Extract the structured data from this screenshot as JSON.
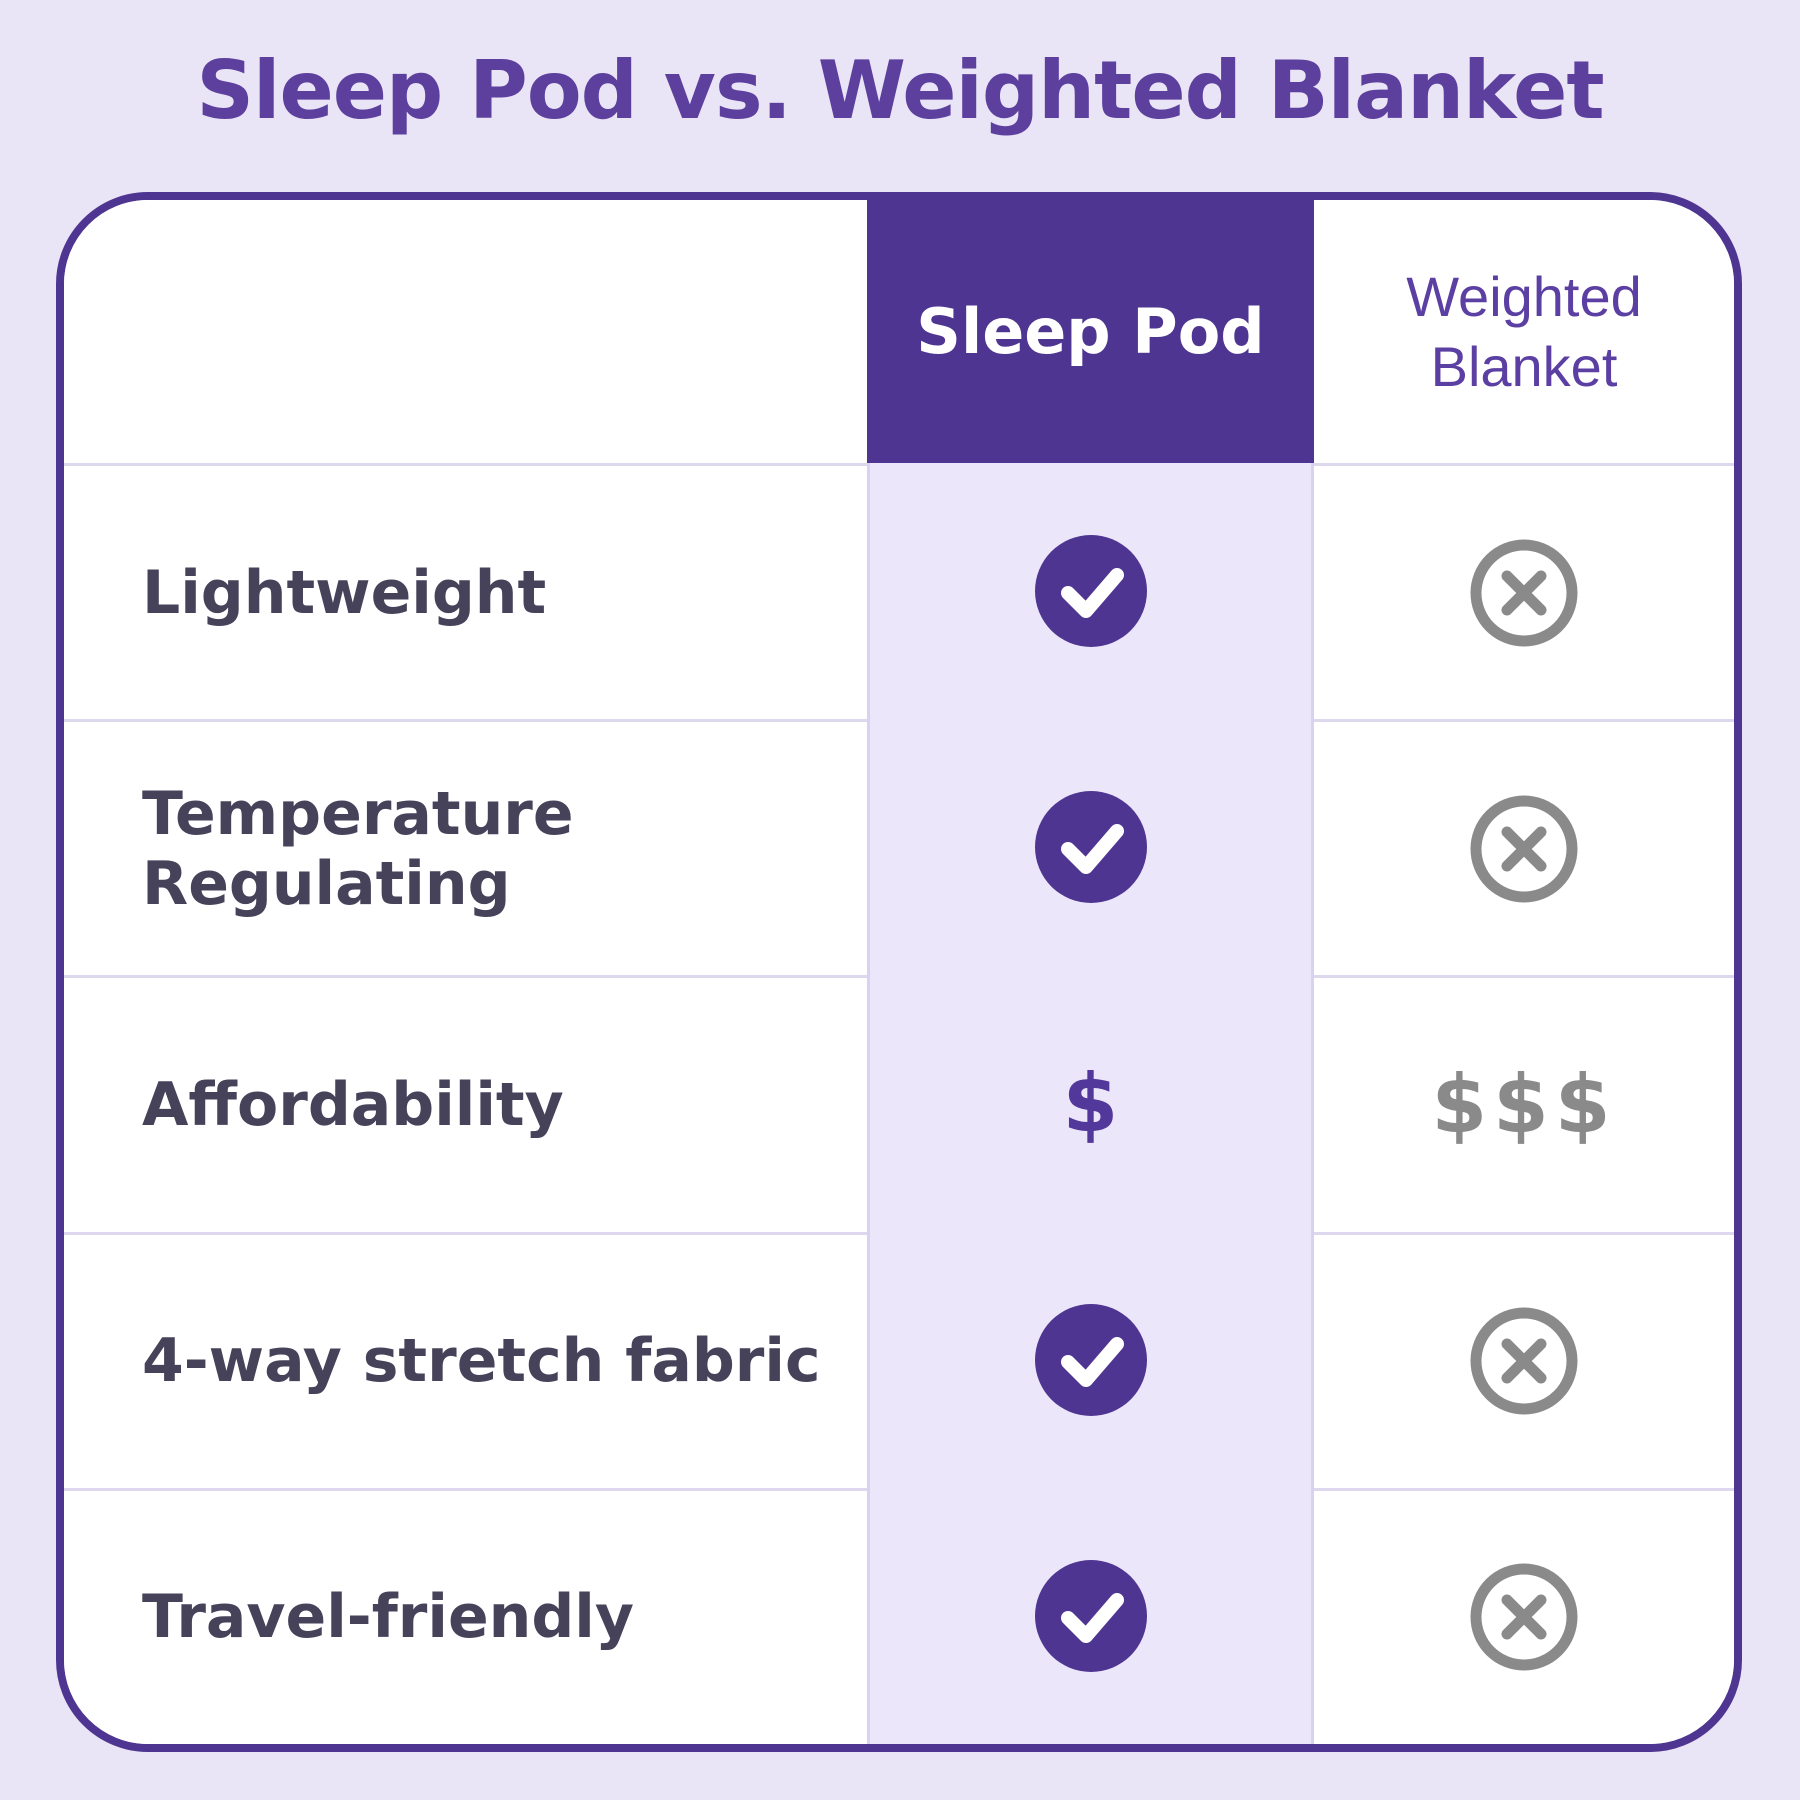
{
  "page": {
    "title": "Sleep Pod vs. Weighted Blanket"
  },
  "table": {
    "columns": [
      {
        "label": ""
      },
      {
        "label": "Sleep Pod"
      },
      {
        "label": "Weighted Blanket"
      }
    ],
    "rows": [
      {
        "label": "Lightweight",
        "sleep_pod": {
          "type": "check-icon"
        },
        "weighted_blanket": {
          "type": "x-icon"
        }
      },
      {
        "label": "Temperature Regulating",
        "sleep_pod": {
          "type": "check-icon"
        },
        "weighted_blanket": {
          "type": "x-icon"
        }
      },
      {
        "label": "Affordability",
        "sleep_pod": {
          "type": "text",
          "value": "$"
        },
        "weighted_blanket": {
          "type": "text",
          "value": "$$$"
        }
      },
      {
        "label": "4-way stretch fabric",
        "sleep_pod": {
          "type": "check-icon"
        },
        "weighted_blanket": {
          "type": "x-icon"
        }
      },
      {
        "label": "Travel-friendly",
        "sleep_pod": {
          "type": "check-icon"
        },
        "weighted_blanket": {
          "type": "x-icon"
        }
      }
    ]
  },
  "colors": {
    "page_background": "#E9E4F6",
    "brand_purple_dark": "#4E3591",
    "title_purple": "#5D3F9E",
    "weighted_header_text": "#5B3FA3",
    "sleep_pod_column_fill": "#ECE6FA",
    "feature_text": "#46425A",
    "negative_gray": "#8A8A8A",
    "divider": "#DDD8ED"
  }
}
